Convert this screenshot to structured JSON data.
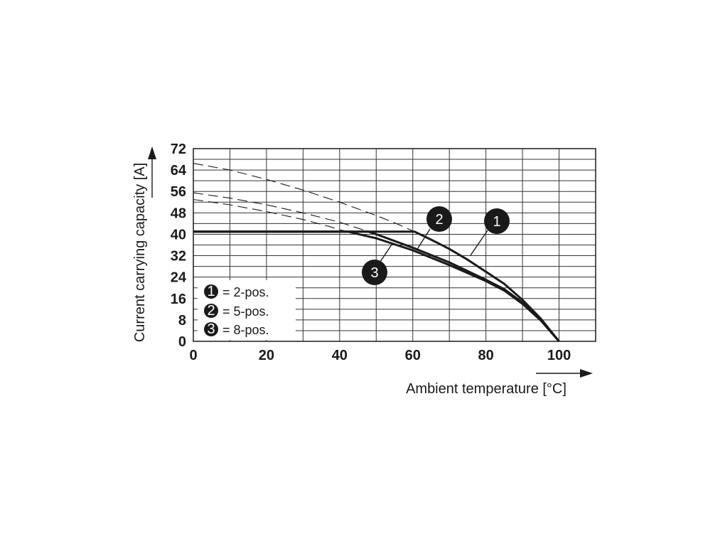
{
  "chart_data": {
    "type": "line",
    "xlabel": "Ambient temperature [°C]",
    "ylabel": "Current carrying capacity [A]",
    "xlim": [
      0,
      110
    ],
    "ylim": [
      0,
      72
    ],
    "x_ticks": [
      0,
      20,
      40,
      60,
      80,
      100
    ],
    "y_ticks": [
      0,
      8,
      16,
      24,
      32,
      40,
      48,
      56,
      64,
      72
    ],
    "x_grid_step": 10,
    "y_grid_step": 4,
    "grid": true,
    "legend": {
      "placement": "bottom-left",
      "items": [
        {
          "marker": "1",
          "label": "= 2-pos."
        },
        {
          "marker": "2",
          "label": "= 5-pos."
        },
        {
          "marker": "3",
          "label": "= 8-pos."
        }
      ]
    },
    "series": [
      {
        "marker": "1",
        "limit": 41,
        "unlimited": [
          [
            0,
            66.5
          ],
          [
            10,
            64
          ],
          [
            20,
            60.5
          ],
          [
            30,
            56.5
          ],
          [
            40,
            52
          ],
          [
            50,
            47
          ],
          [
            55,
            44.3
          ],
          [
            60,
            41.3
          ],
          [
            65,
            38
          ],
          [
            70,
            34.5
          ],
          [
            75,
            30.5
          ],
          [
            80,
            26
          ],
          [
            85,
            21.5
          ],
          [
            90,
            15.5
          ],
          [
            95,
            8.5
          ],
          [
            100,
            0
          ]
        ]
      },
      {
        "marker": "2",
        "limit": 41,
        "unlimited": [
          [
            0,
            55.5
          ],
          [
            10,
            53.5
          ],
          [
            20,
            51
          ],
          [
            30,
            48
          ],
          [
            40,
            44.5
          ],
          [
            45,
            42.3
          ],
          [
            50,
            40
          ],
          [
            60,
            35
          ],
          [
            70,
            29.5
          ],
          [
            80,
            23
          ],
          [
            85,
            19.5
          ],
          [
            90,
            14.5
          ],
          [
            95,
            8
          ],
          [
            100,
            0
          ]
        ]
      },
      {
        "marker": "3",
        "limit": 41,
        "unlimited": [
          [
            0,
            53
          ],
          [
            10,
            51
          ],
          [
            20,
            48.5
          ],
          [
            30,
            45.5
          ],
          [
            37,
            43
          ],
          [
            40,
            41.7
          ],
          [
            50,
            38.5
          ],
          [
            60,
            34
          ],
          [
            70,
            28.5
          ],
          [
            80,
            22.5
          ],
          [
            85,
            19
          ],
          [
            90,
            14
          ],
          [
            95,
            7.8
          ],
          [
            100,
            0
          ]
        ]
      }
    ]
  }
}
